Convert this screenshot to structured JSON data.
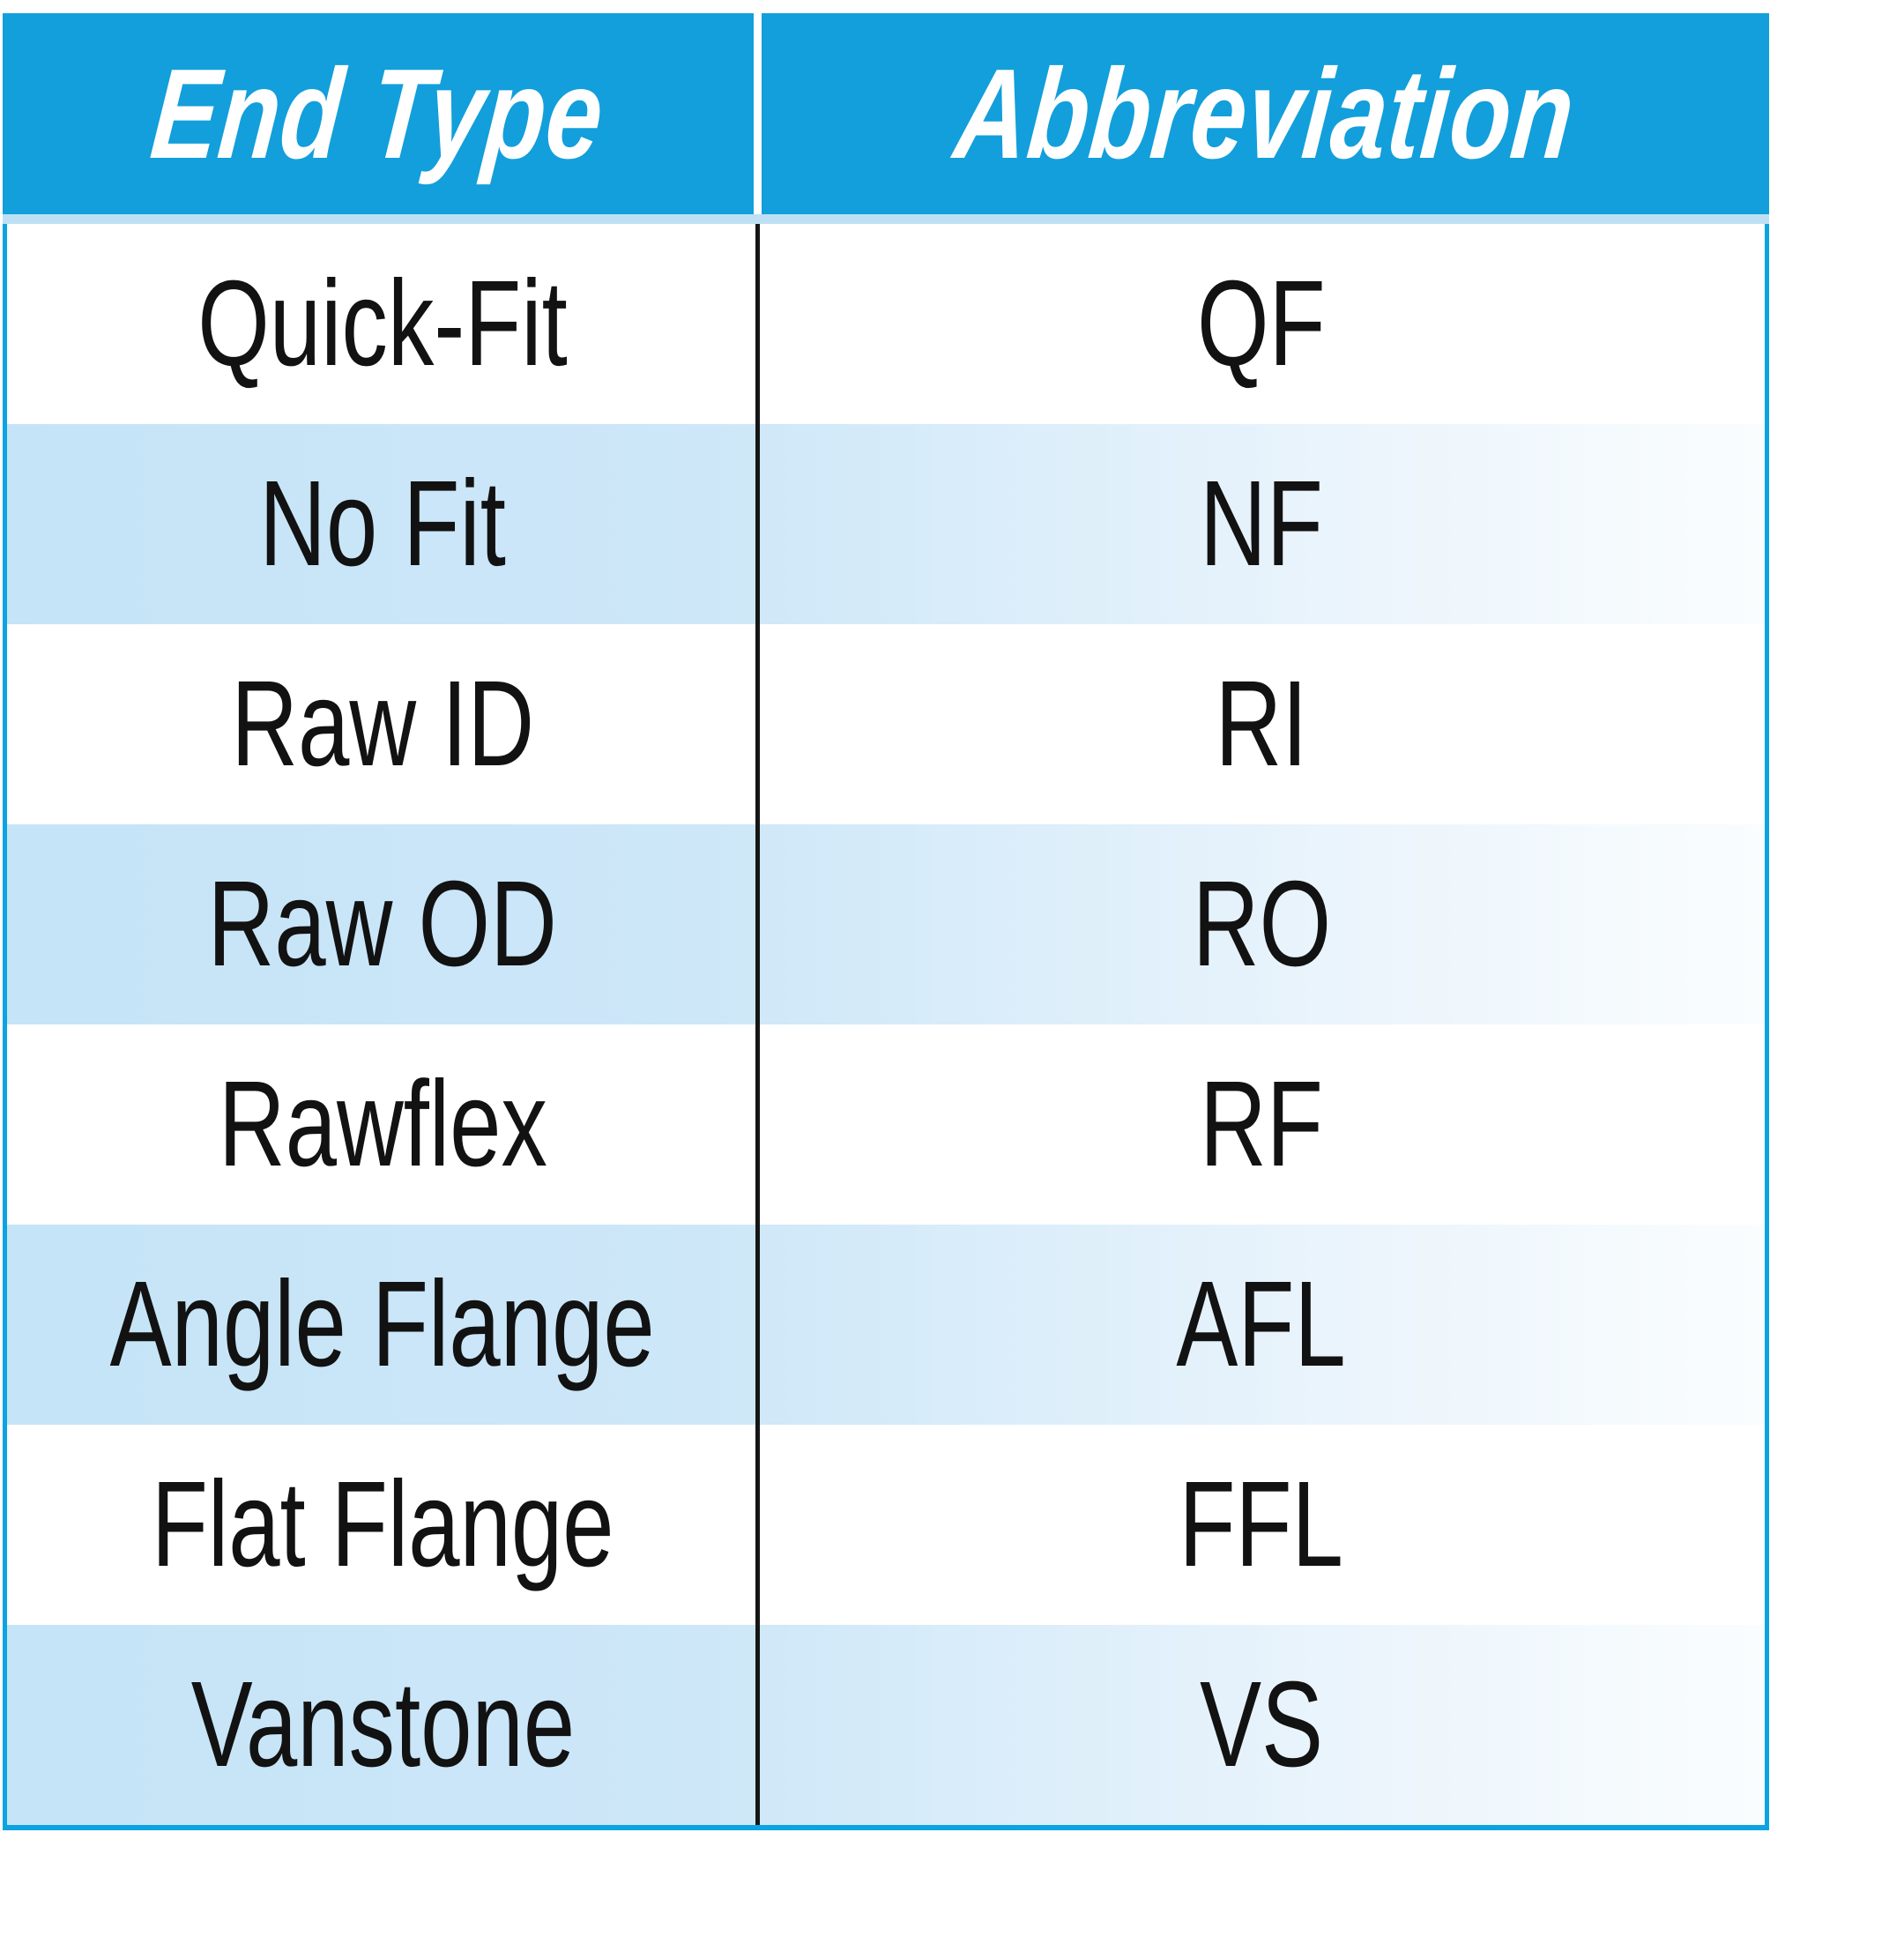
{
  "table": {
    "header": {
      "end_type": "End Type",
      "abbreviation": "Abbreviation"
    },
    "rows": [
      {
        "end_type": "Quick-Fit",
        "abbr": "QF"
      },
      {
        "end_type": "No Fit",
        "abbr": "NF"
      },
      {
        "end_type": "Raw ID",
        "abbr": "RI"
      },
      {
        "end_type": "Raw OD",
        "abbr": "RO"
      },
      {
        "end_type": "Rawflex",
        "abbr": "RF"
      },
      {
        "end_type": "Angle Flange",
        "abbr": "AFL"
      },
      {
        "end_type": "Flat Flange",
        "abbr": "FFL"
      },
      {
        "end_type": "Vanstone",
        "abbr": "VS"
      }
    ],
    "colors": {
      "header_bg": "#129fdb",
      "header_text": "#ffffff",
      "outer_border": "#0ba3e1",
      "strip_under_header": "#bee0f5",
      "row_stripe_left": "#c5e4f7",
      "row_stripe_right": "#fafdfe",
      "body_divider": "#161616",
      "body_text": "#121212"
    }
  }
}
